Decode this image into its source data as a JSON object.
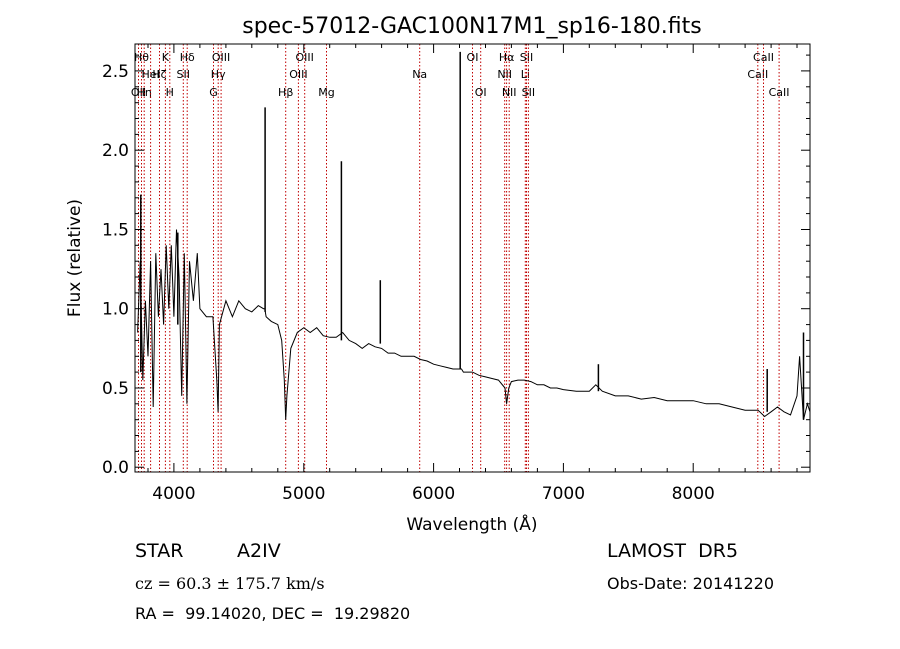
{
  "chart_data": {
    "type": "line",
    "title": "spec-57012-GAC100N17M1_sp16-180.fits",
    "xlabel": "Wavelength (Å)",
    "ylabel": "Flux (relative)",
    "xlim": [
      3700,
      8900
    ],
    "ylim": [
      -0.03,
      2.67
    ],
    "xticks": [
      4000,
      5000,
      6000,
      7000,
      8000
    ],
    "xtick_labels": [
      "4000",
      "5000",
      "6000",
      "7000",
      "8000"
    ],
    "yticks": [
      0.0,
      0.5,
      1.0,
      1.5,
      2.0,
      2.5
    ],
    "ytick_labels": [
      "0.0",
      "0.5",
      "1.0",
      "1.5",
      "2.0",
      "2.5"
    ],
    "grid": false,
    "line_color": "#000000",
    "marker_color": "#c00000",
    "spectrum": {
      "x": [
        3720,
        3740,
        3760,
        3780,
        3800,
        3820,
        3840,
        3860,
        3880,
        3900,
        3920,
        3940,
        3960,
        3980,
        4000,
        4020,
        4040,
        4060,
        4080,
        4100,
        4120,
        4150,
        4180,
        4200,
        4250,
        4300,
        4330,
        4340,
        4350,
        4400,
        4450,
        4500,
        4550,
        4600,
        4650,
        4690,
        4700,
        4710,
        4750,
        4800,
        4830,
        4850,
        4861,
        4870,
        4900,
        4950,
        5000,
        5050,
        5100,
        5150,
        5200,
        5250,
        5300,
        5350,
        5400,
        5450,
        5500,
        5550,
        5600,
        5650,
        5700,
        5750,
        5800,
        5850,
        5900,
        5950,
        6000,
        6050,
        6100,
        6150,
        6200,
        6215,
        6230,
        6250,
        6300,
        6350,
        6400,
        6450,
        6500,
        6550,
        6563,
        6580,
        6600,
        6650,
        6700,
        6750,
        6800,
        6850,
        6900,
        6950,
        7000,
        7100,
        7200,
        7250,
        7300,
        7400,
        7500,
        7600,
        7700,
        7800,
        7900,
        8000,
        8100,
        8200,
        8300,
        8400,
        8500,
        8550,
        8600,
        8650,
        8700,
        8750,
        8800,
        8820,
        8850,
        8880,
        8900
      ],
      "y": [
        0.85,
        1.3,
        0.55,
        1.05,
        0.7,
        1.3,
        0.38,
        1.35,
        0.95,
        1.25,
        0.9,
        1.4,
        1.0,
        1.4,
        0.95,
        1.5,
        1.2,
        0.45,
        1.35,
        0.4,
        1.3,
        1.05,
        1.35,
        1.0,
        0.95,
        0.95,
        0.55,
        0.35,
        0.9,
        1.05,
        0.95,
        1.05,
        1.0,
        0.98,
        1.02,
        1.0,
        1.0,
        0.95,
        0.92,
        0.9,
        0.8,
        0.55,
        0.3,
        0.45,
        0.75,
        0.85,
        0.88,
        0.85,
        0.88,
        0.83,
        0.82,
        0.82,
        0.85,
        0.8,
        0.78,
        0.75,
        0.78,
        0.76,
        0.75,
        0.72,
        0.72,
        0.7,
        0.7,
        0.7,
        0.68,
        0.67,
        0.65,
        0.64,
        0.63,
        0.62,
        0.62,
        0.62,
        0.6,
        0.6,
        0.6,
        0.58,
        0.57,
        0.56,
        0.55,
        0.5,
        0.4,
        0.5,
        0.54,
        0.55,
        0.55,
        0.54,
        0.52,
        0.52,
        0.5,
        0.5,
        0.49,
        0.48,
        0.48,
        0.52,
        0.48,
        0.45,
        0.45,
        0.43,
        0.44,
        0.42,
        0.42,
        0.42,
        0.4,
        0.4,
        0.38,
        0.36,
        0.36,
        0.32,
        0.35,
        0.38,
        0.35,
        0.33,
        0.45,
        0.7,
        0.3,
        0.4,
        0.35
      ]
    },
    "spikes": [
      {
        "x": 3745,
        "top": 1.72,
        "bottom": 0.6
      },
      {
        "x": 4030,
        "top": 1.48,
        "bottom": 0.9
      },
      {
        "x": 4702,
        "top": 2.27,
        "bottom": 0.98
      },
      {
        "x": 5290,
        "top": 1.93,
        "bottom": 0.8
      },
      {
        "x": 5590,
        "top": 1.18,
        "bottom": 0.78
      },
      {
        "x": 6205,
        "top": 2.62,
        "bottom": 0.62
      },
      {
        "x": 7270,
        "top": 0.65,
        "bottom": 0.48
      },
      {
        "x": 8570,
        "top": 0.62,
        "bottom": 0.35
      },
      {
        "x": 8850,
        "top": 0.85,
        "bottom": 0.3
      }
    ],
    "lines": [
      {
        "x": 3727,
        "label": "OII",
        "row": 2
      },
      {
        "x": 3750,
        "label": "Hθ",
        "row": 0
      },
      {
        "x": 3771,
        "label": "Hη",
        "row": 2
      },
      {
        "x": 3820,
        "label": "HeI",
        "row": 1
      },
      {
        "x": 3889,
        "label": "Hζ",
        "row": 1
      },
      {
        "x": 3934,
        "label": "K",
        "row": 0
      },
      {
        "x": 3968,
        "label": "H",
        "row": 2
      },
      {
        "x": 4072,
        "label": "SII",
        "row": 1
      },
      {
        "x": 4102,
        "label": "Hδ",
        "row": 0
      },
      {
        "x": 4305,
        "label": "G",
        "row": 2
      },
      {
        "x": 4341,
        "label": "Hγ",
        "row": 1
      },
      {
        "x": 4363,
        "label": "OIII",
        "row": 0
      },
      {
        "x": 4861,
        "label": "Hβ",
        "row": 2
      },
      {
        "x": 4959,
        "label": "OIII",
        "row": 1
      },
      {
        "x": 5007,
        "label": "OIII",
        "row": 0
      },
      {
        "x": 5175,
        "label": "Mg",
        "row": 2
      },
      {
        "x": 5893,
        "label": "Na",
        "row": 1
      },
      {
        "x": 6300,
        "label": "OI",
        "row": 0
      },
      {
        "x": 6363,
        "label": "OI",
        "row": 2
      },
      {
        "x": 6548,
        "label": "NII",
        "row": 1
      },
      {
        "x": 6563,
        "label": "Hα",
        "row": 0
      },
      {
        "x": 6583,
        "label": "NII",
        "row": 2
      },
      {
        "x": 6707,
        "label": "Li",
        "row": 1
      },
      {
        "x": 6716,
        "label": "SII",
        "row": 0
      },
      {
        "x": 6731,
        "label": "SII",
        "row": 2
      },
      {
        "x": 8498,
        "label": "CaII",
        "row": 1
      },
      {
        "x": 8542,
        "label": "CaII",
        "row": 0
      },
      {
        "x": 8662,
        "label": "CaII",
        "row": 2
      }
    ]
  },
  "info": {
    "object_class": "STAR",
    "subclass": "A2IV",
    "survey": "LAMOST  DR5",
    "redshift": "cz = 60.3 ± 175.7 km/s",
    "obs_date": "Obs-Date: 20141220",
    "coords": "RA =  99.14020, DEC =  19.29820"
  }
}
